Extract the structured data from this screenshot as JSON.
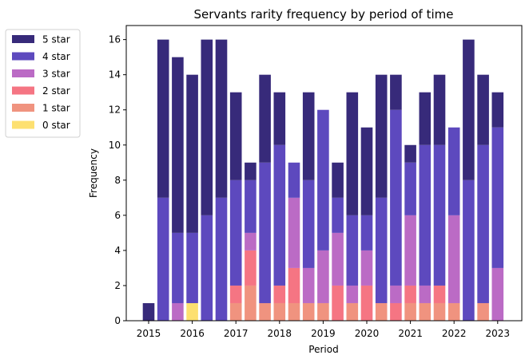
{
  "chart_data": {
    "type": "bar",
    "stacked": true,
    "title": "Servants rarity frequency by period of time",
    "xlabel": "Period",
    "ylabel": "Frequency",
    "ylim": [
      0,
      16.8
    ],
    "yticks": [
      0,
      2,
      4,
      6,
      8,
      10,
      12,
      14,
      16
    ],
    "xtick_labels": [
      "2015",
      "2016",
      "2017",
      "2018",
      "2019",
      "2020",
      "2021",
      "2022",
      "2023"
    ],
    "xtick_bar_index": [
      0,
      3,
      6,
      9,
      12,
      15,
      18,
      21,
      24
    ],
    "grid": false,
    "legend_position": "outside-left",
    "series": [
      {
        "name": "0 star",
        "color": "#fde070",
        "values": [
          0,
          0,
          0,
          1,
          0,
          0,
          0,
          0,
          0,
          0,
          0,
          0,
          0,
          0,
          0,
          0,
          0,
          0,
          0,
          0,
          0,
          0,
          0,
          0,
          0
        ]
      },
      {
        "name": "1 star",
        "color": "#f0937f",
        "values": [
          0,
          0,
          0,
          0,
          0,
          0,
          1,
          2,
          1,
          1,
          1,
          1,
          1,
          0,
          1,
          0,
          1,
          0,
          1,
          1,
          1,
          1,
          0,
          1,
          0
        ]
      },
      {
        "name": "2 star",
        "color": "#f57583",
        "values": [
          0,
          0,
          0,
          0,
          0,
          0,
          1,
          2,
          0,
          1,
          2,
          0,
          0,
          2,
          0,
          2,
          0,
          1,
          1,
          0,
          1,
          0,
          0,
          0,
          0
        ]
      },
      {
        "name": "3 star",
        "color": "#bb6bc5",
        "values": [
          0,
          0,
          1,
          0,
          0,
          0,
          0,
          1,
          0,
          0,
          4,
          2,
          3,
          3,
          1,
          2,
          0,
          1,
          4,
          1,
          0,
          5,
          0,
          0,
          3
        ]
      },
      {
        "name": "4 star",
        "color": "#5d49be",
        "values": [
          0,
          7,
          4,
          4,
          6,
          7,
          6,
          3,
          8,
          8,
          2,
          5,
          8,
          2,
          4,
          2,
          6,
          10,
          3,
          8,
          8,
          5,
          8,
          9,
          8
        ]
      },
      {
        "name": "5 star",
        "color": "#372a7a",
        "values": [
          1,
          9,
          10,
          9,
          10,
          9,
          5,
          1,
          5,
          3,
          0,
          5,
          0,
          2,
          7,
          5,
          7,
          2,
          1,
          3,
          4,
          0,
          8,
          4,
          2
        ]
      }
    ]
  }
}
